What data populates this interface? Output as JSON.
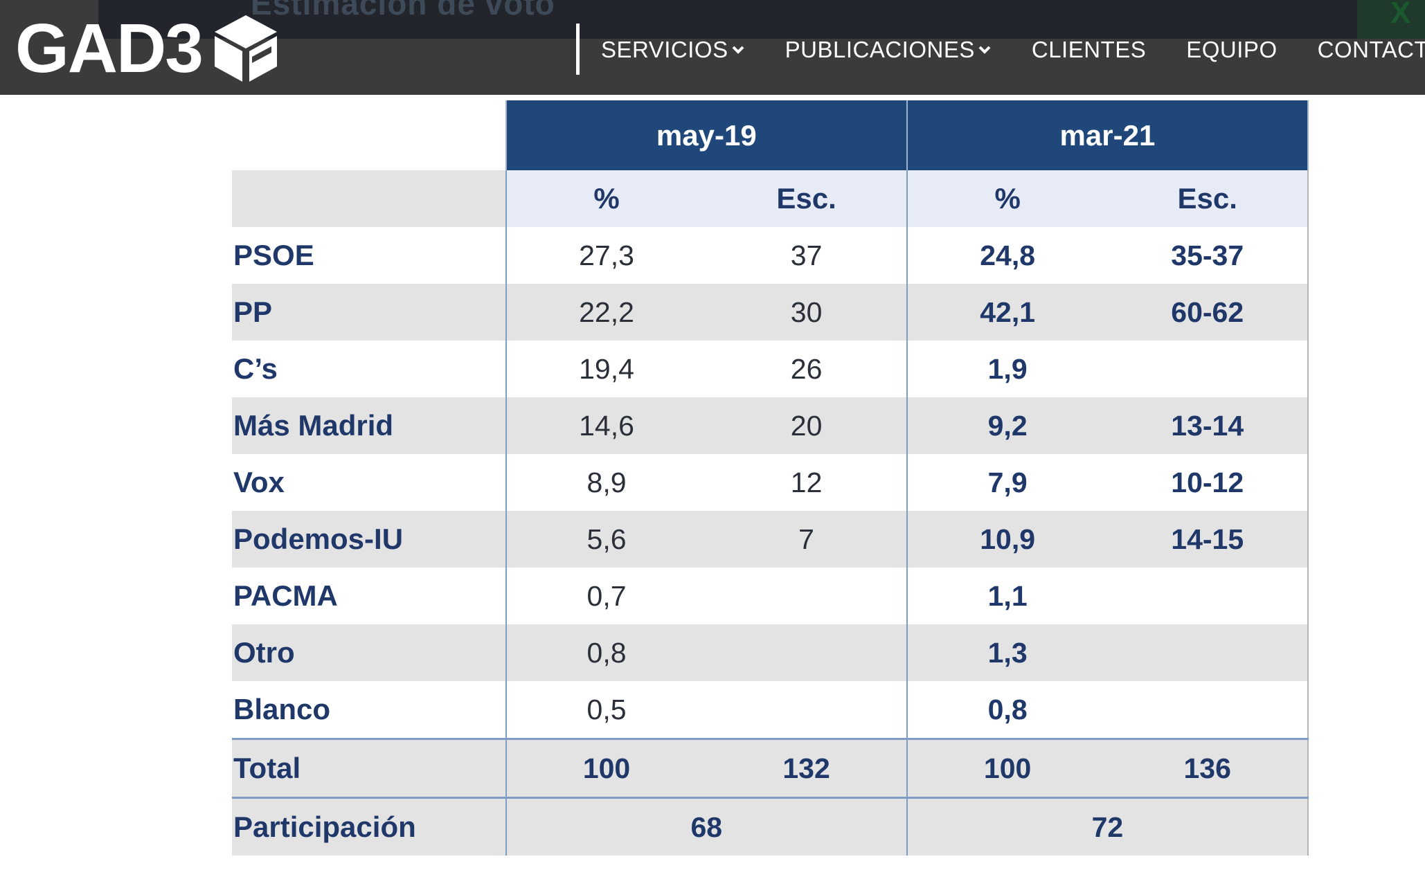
{
  "header": {
    "strip_text": "Estimación de voto",
    "strip_corner_text": "X",
    "logo_text": "GAD3",
    "nav": [
      {
        "label": "SERVICIOS",
        "has_dropdown": true
      },
      {
        "label": "PUBLICACIONES",
        "has_dropdown": true
      },
      {
        "label": "CLIENTES",
        "has_dropdown": false
      },
      {
        "label": "EQUIPO",
        "has_dropdown": false
      },
      {
        "label": "CONTACTO",
        "has_dropdown": false
      }
    ]
  },
  "table": {
    "periods": [
      "may-19",
      "mar-21"
    ],
    "subheaders": {
      "pct": "%",
      "seats": "Esc."
    },
    "rows": [
      {
        "party": "PSOE",
        "may_pct": "27,3",
        "may_seats": "37",
        "mar_pct": "24,8",
        "mar_seats": "35-37"
      },
      {
        "party": "PP",
        "may_pct": "22,2",
        "may_seats": "30",
        "mar_pct": "42,1",
        "mar_seats": "60-62"
      },
      {
        "party": "C’s",
        "may_pct": "19,4",
        "may_seats": "26",
        "mar_pct": "1,9",
        "mar_seats": ""
      },
      {
        "party": "Más Madrid",
        "may_pct": "14,6",
        "may_seats": "20",
        "mar_pct": "9,2",
        "mar_seats": "13-14"
      },
      {
        "party": "Vox",
        "may_pct": "8,9",
        "may_seats": "12",
        "mar_pct": "7,9",
        "mar_seats": "10-12"
      },
      {
        "party": "Podemos-IU",
        "may_pct": "5,6",
        "may_seats": "7",
        "mar_pct": "10,9",
        "mar_seats": "14-15"
      },
      {
        "party": "PACMA",
        "may_pct": "0,7",
        "may_seats": "",
        "mar_pct": "1,1",
        "mar_seats": ""
      },
      {
        "party": "Otro",
        "may_pct": "0,8",
        "may_seats": "",
        "mar_pct": "1,3",
        "mar_seats": ""
      },
      {
        "party": "Blanco",
        "may_pct": "0,5",
        "may_seats": "",
        "mar_pct": "0,8",
        "mar_seats": ""
      }
    ],
    "total": {
      "label": "Total",
      "may_pct": "100",
      "may_seats": "132",
      "mar_pct": "100",
      "mar_seats": "136"
    },
    "participation": {
      "label": "Participación",
      "may": "68",
      "mar": "72"
    }
  },
  "colors": {
    "header_bg": "#3b3b3b",
    "table_header_blue": "#1f477a",
    "subheader_bg": "#e6ebf5",
    "row_shade": "#e3e3e3",
    "label_text": "#1f3869"
  }
}
